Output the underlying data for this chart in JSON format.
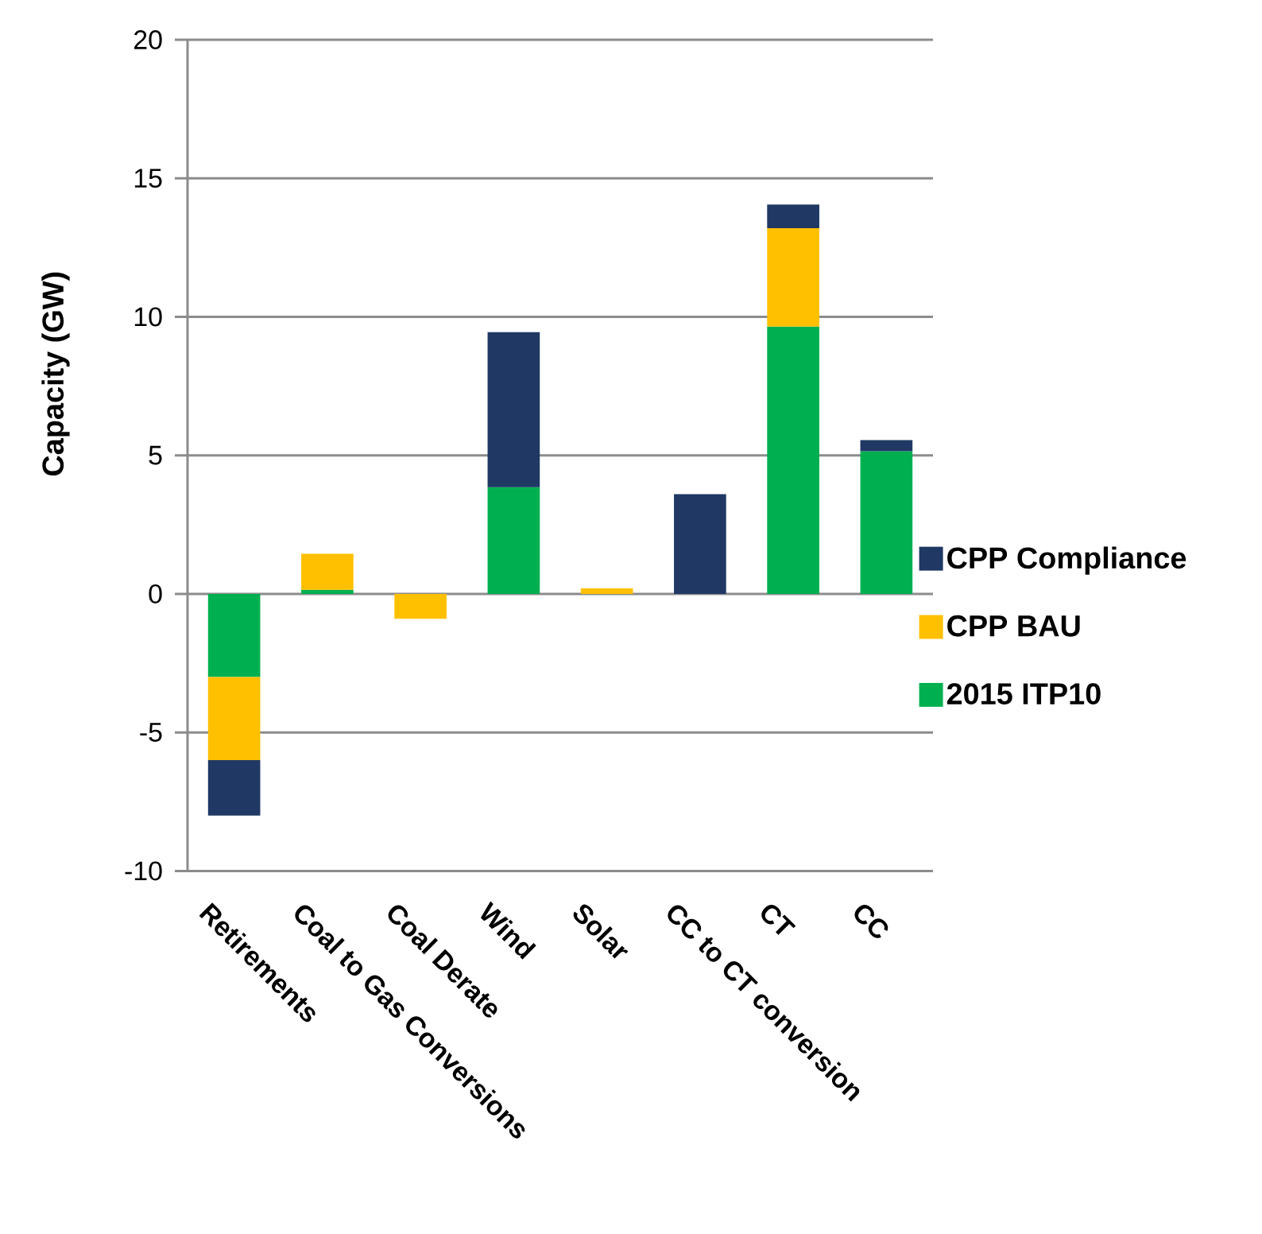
{
  "chart_data": {
    "type": "bar",
    "stacked": true,
    "ylabel": "Capacity (GW)",
    "categories": [
      "Retirements",
      "Coal to Gas Conversions",
      "Coal Derate",
      "Wind",
      "Solar",
      "CC to CT conversion",
      "CT",
      "CC"
    ],
    "series": [
      {
        "name": "2015 ITP10",
        "color": "#00b050",
        "values": [
          -3,
          0.15,
          0,
          3.85,
          0,
          0,
          9.65,
          5.15
        ]
      },
      {
        "name": "CPP BAU",
        "color": "#ffc000",
        "values": [
          -3,
          1.3,
          -0.9,
          0,
          0.2,
          0,
          3.55,
          0
        ]
      },
      {
        "name": "CPP Compliance",
        "color": "#1f3864",
        "values": [
          -2,
          0,
          0,
          5.6,
          0,
          3.6,
          0.85,
          0.4
        ]
      }
    ],
    "ylim": [
      -10,
      20
    ],
    "yticks": [
      -10,
      -5,
      0,
      5,
      10,
      15,
      20
    ],
    "grid": "y",
    "legend": "right"
  }
}
